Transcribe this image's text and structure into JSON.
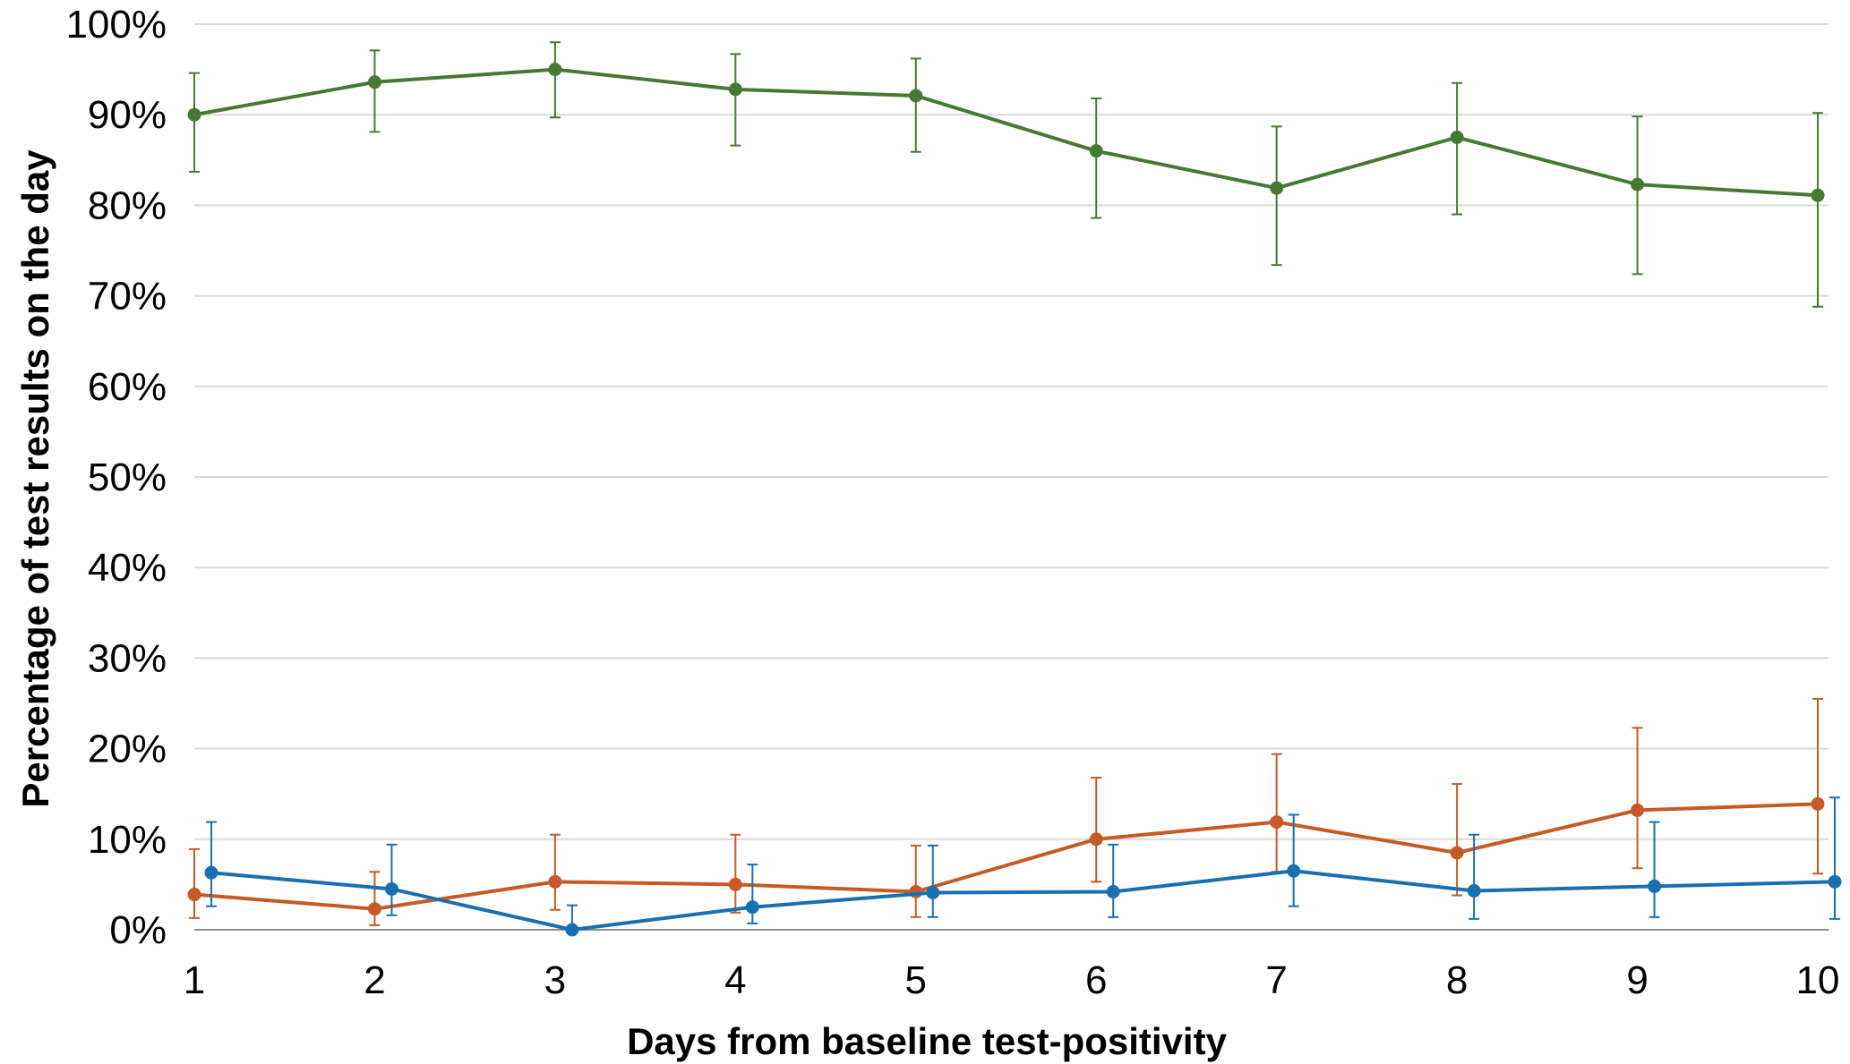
{
  "chart_data": {
    "type": "line",
    "title": "",
    "xlabel": "Days from baseline test-positivity",
    "ylabel": "Percentage of test results on the day",
    "x": [
      1,
      2,
      3,
      4,
      5,
      6,
      7,
      8,
      9,
      10
    ],
    "x_tick_labels": [
      "1",
      "2",
      "3",
      "4",
      "5",
      "6",
      "7",
      "8",
      "9",
      "10"
    ],
    "ylim": [
      0,
      100
    ],
    "y_ticks": [
      0,
      10,
      20,
      30,
      40,
      50,
      60,
      70,
      80,
      90,
      100
    ],
    "y_tick_labels": [
      "0%",
      "10%",
      "20%",
      "30%",
      "40%",
      "50%",
      "60%",
      "70%",
      "80%",
      "90%",
      "100%"
    ],
    "grid": true,
    "legend": "none",
    "series": [
      {
        "color": "#467a32",
        "values": [
          90.0,
          93.6,
          95.0,
          92.8,
          92.1,
          86.0,
          81.9,
          87.5,
          82.3,
          81.1
        ],
        "err_low": [
          83.7,
          88.1,
          89.7,
          86.6,
          85.9,
          78.6,
          73.4,
          79.0,
          72.4,
          68.8
        ],
        "err_high": [
          94.6,
          97.1,
          98.0,
          96.7,
          96.2,
          91.8,
          88.7,
          93.5,
          89.8,
          90.2
        ]
      },
      {
        "color": "#c65a27",
        "values": [
          3.9,
          2.3,
          5.3,
          5.0,
          4.2,
          10.0,
          11.9,
          8.5,
          13.2,
          13.9
        ],
        "err_low": [
          1.3,
          0.5,
          2.2,
          1.9,
          1.4,
          5.3,
          6.4,
          3.8,
          6.8,
          6.2
        ],
        "err_high": [
          8.9,
          6.4,
          10.5,
          10.5,
          9.3,
          16.8,
          19.4,
          16.1,
          22.3,
          25.5
        ]
      },
      {
        "color": "#1a6faf",
        "values": [
          6.3,
          4.5,
          0.0,
          2.5,
          4.1,
          4.2,
          6.5,
          4.3,
          4.8,
          5.3
        ],
        "err_low": [
          2.6,
          1.6,
          0.0,
          0.7,
          1.4,
          1.4,
          2.6,
          1.2,
          1.4,
          1.2
        ],
        "err_high": [
          11.9,
          9.4,
          2.7,
          7.2,
          9.3,
          9.4,
          12.7,
          10.5,
          11.9,
          14.6
        ]
      }
    ]
  }
}
